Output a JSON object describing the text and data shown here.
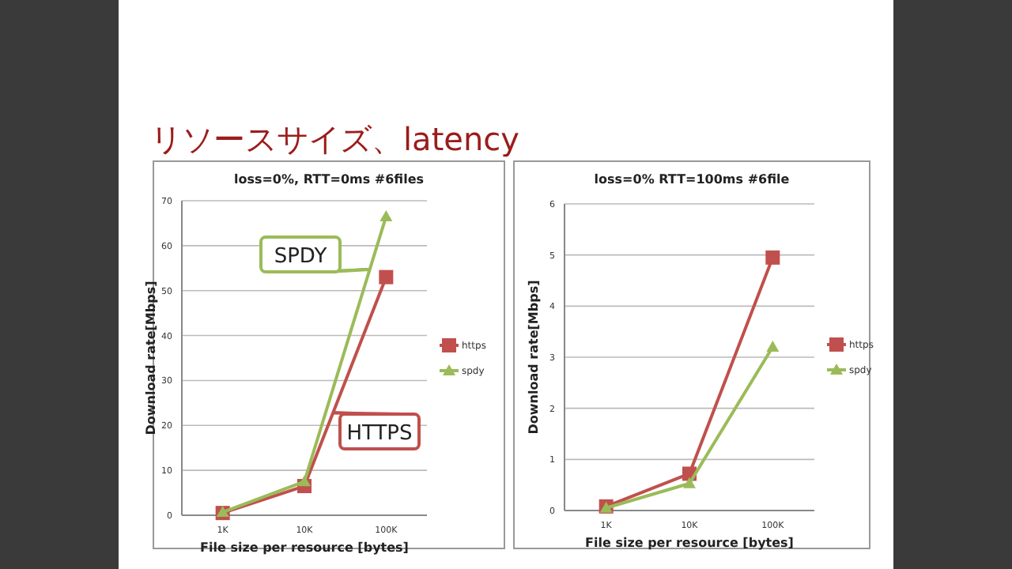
{
  "chart_data": [
    {
      "type": "line",
      "title": "リソースサイズ、latency",
      "subtitle": "loss=0%, RTT=0ms #6files",
      "xlabel": "File size per resource [bytes]",
      "ylabel": "Download rate[Mbps]",
      "categories": [
        "1K",
        "10K",
        "100K"
      ],
      "ylim": [
        0,
        70
      ],
      "yticks": [
        0,
        10,
        20,
        30,
        40,
        50,
        60,
        70
      ],
      "grid": "y",
      "legend": "right",
      "annotations": [
        "SPDY",
        "HTTPS"
      ],
      "series": [
        {
          "name": "https",
          "color": "#c0504d",
          "marker": "square",
          "values": [
            0.5,
            6.5,
            53
          ]
        },
        {
          "name": "spdy",
          "color": "#9bbb59",
          "marker": "triangle",
          "values": [
            0.7,
            7.5,
            66.5
          ]
        }
      ]
    },
    {
      "type": "line",
      "title": "loss=0% RTT=100ms #6file",
      "xlabel": "File size per resource [bytes]",
      "ylabel": "Download rate[Mbps]",
      "categories": [
        "1K",
        "10K",
        "100K"
      ],
      "ylim": [
        0,
        6
      ],
      "yticks": [
        0,
        1,
        2,
        3,
        4,
        5,
        6
      ],
      "grid": "y",
      "legend": "right",
      "series": [
        {
          "name": "https",
          "color": "#c0504d",
          "marker": "square",
          "values": [
            0.08,
            0.72,
            4.95
          ]
        },
        {
          "name": "spdy",
          "color": "#9bbb59",
          "marker": "triangle",
          "values": [
            0.05,
            0.53,
            3.2
          ]
        }
      ]
    }
  ]
}
